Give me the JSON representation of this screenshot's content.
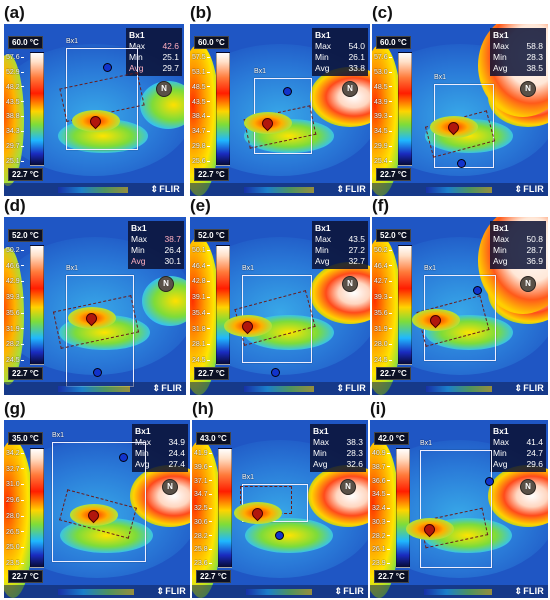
{
  "panels": [
    {
      "label": "(a)",
      "scale_max": "60.0 °C",
      "scale_min": "22.7 °C",
      "ticks": [
        "57.6",
        "52.9",
        "48.2",
        "43.5",
        "38.8",
        "34.3",
        "29.7",
        "25.1"
      ],
      "roi_name": "Bx1",
      "stats_title": "Bx1",
      "max_label": "Max",
      "max": "42.6",
      "min_label": "Min",
      "min": "25.1",
      "avg_label": "Avg",
      "avg": "29.7",
      "brand": "FLIR",
      "compass": "N",
      "max_red": true
    },
    {
      "label": "(b)",
      "scale_max": "60.0 °C",
      "scale_min": "22.7 °C",
      "ticks": [
        "57.5",
        "53.1",
        "48.5",
        "43.5",
        "38.4",
        "34.7",
        "29.8",
        "25.6"
      ],
      "roi_name": "Bx1",
      "stats_title": "Bx1",
      "max_label": "Max",
      "max": "54.0",
      "min_label": "Min",
      "min": "26.1",
      "avg_label": "Avg",
      "avg": "33.8",
      "brand": "FLIR",
      "compass": "N",
      "max_red": false
    },
    {
      "label": "(c)",
      "scale_max": "60.0 °C",
      "scale_min": "22.7 °C",
      "ticks": [
        "57.6",
        "53.0",
        "48.5",
        "43.9",
        "39.3",
        "34.5",
        "29.9",
        "25.4"
      ],
      "roi_name": "Bx1",
      "stats_title": "Bx1",
      "max_label": "Max",
      "max": "58.8",
      "min_label": "Min",
      "min": "28.3",
      "avg_label": "Avg",
      "avg": "38.5",
      "brand": "FLIR",
      "compass": "N",
      "max_red": false
    },
    {
      "label": "(d)",
      "scale_max": "52.0 °C",
      "scale_min": "22.7 °C",
      "ticks": [
        "50.2",
        "46.6",
        "42.9",
        "39.3",
        "35.6",
        "31.9",
        "28.2",
        "24.5"
      ],
      "roi_name": "Bx1",
      "stats_title": "Bx1",
      "max_label": "Max",
      "max": "38.7",
      "min_label": "Min",
      "min": "26.4",
      "avg_label": "Avg",
      "avg": "30.1",
      "brand": "FLIR",
      "compass": "N",
      "max_red": true
    },
    {
      "label": "(e)",
      "scale_max": "52.0 °C",
      "scale_min": "22.7 °C",
      "ticks": [
        "50.1",
        "46.4",
        "42.8",
        "39.1",
        "35.4",
        "31.8",
        "28.1",
        "24.5"
      ],
      "roi_name": "Bx1",
      "stats_title": "Bx1",
      "max_label": "Max",
      "max": "43.5",
      "min_label": "Min",
      "min": "27.2",
      "avg_label": "Avg",
      "avg": "32.7",
      "brand": "FLIR",
      "compass": "N",
      "max_red": false
    },
    {
      "label": "(f)",
      "scale_max": "52.0 °C",
      "scale_min": "22.7 °C",
      "ticks": [
        "50.2",
        "46.4",
        "42.7",
        "39.3",
        "35.6",
        "31.9",
        "28.0",
        "24.5"
      ],
      "roi_name": "Bx1",
      "stats_title": "Bx1",
      "max_label": "Max",
      "max": "50.8",
      "min_label": "Min",
      "min": "28.7",
      "avg_label": "Avg",
      "avg": "36.9",
      "brand": "FLIR",
      "compass": "N",
      "max_red": false
    },
    {
      "label": "(g)",
      "scale_max": "35.0 °C",
      "scale_min": "22.7 °C",
      "ticks": [
        "34.2",
        "32.7",
        "31.0",
        "29.6",
        "28.0",
        "26.5",
        "25.0",
        "23.5"
      ],
      "roi_name": "Bx1",
      "stats_title": "Bx1",
      "max_label": "Max",
      "max": "34.9",
      "min_label": "Min",
      "min": "24.4",
      "avg_label": "Avg",
      "avg": "27.4",
      "brand": "FLIR",
      "compass": "N",
      "max_red": false
    },
    {
      "label": "(h)",
      "scale_max": "43.0 °C",
      "scale_min": "22.7 °C",
      "ticks": [
        "41.9",
        "39.6",
        "37.1",
        "34.7",
        "32.5",
        "30.6",
        "28.2",
        "25.8",
        "23.6"
      ],
      "roi_name": "Bx1",
      "stats_title": "Bx1",
      "max_label": "Max",
      "max": "38.3",
      "min_label": "Min",
      "min": "28.3",
      "avg_label": "Avg",
      "avg": "32.6",
      "brand": "FLIR",
      "compass": "N",
      "max_red": false
    },
    {
      "label": "(i)",
      "scale_max": "42.0 °C",
      "scale_min": "22.7 °C",
      "ticks": [
        "40.9",
        "38.7",
        "36.6",
        "34.5",
        "32.4",
        "30.3",
        "28.2",
        "26.1",
        "23.9"
      ],
      "roi_name": "Bx1",
      "stats_title": "Bx1",
      "max_label": "Max",
      "max": "41.4",
      "min_label": "Min",
      "min": "24.7",
      "avg_label": "Avg",
      "avg": "29.6",
      "brand": "FLIR",
      "compass": "N",
      "max_red": false
    }
  ]
}
